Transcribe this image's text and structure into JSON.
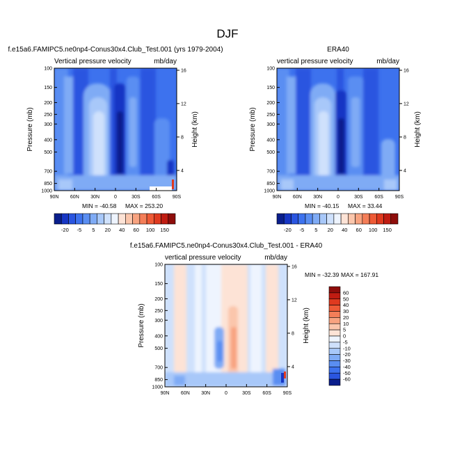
{
  "figure": {
    "title": "DJF"
  },
  "chart_data": [
    {
      "type": "heatmap",
      "title": "f.e15a6.FAMIPC5.ne0np4-Conus30x4.Club_Test.001 (yrs 1979-2004)",
      "subtitle_left": "Vertical pressure velocity",
      "subtitle_right": "mb/day",
      "ylabel": "Pressure (mb)",
      "ylabel_right": "Height (km)",
      "x_ticks": [
        "90N",
        "60N",
        "30N",
        "0",
        "30S",
        "60S",
        "90S"
      ],
      "y_ticks": [
        "100",
        "150",
        "200",
        "250",
        "300",
        "400",
        "500",
        "700",
        "850",
        "1000"
      ],
      "y_ticks_right": [
        "16",
        "12",
        "8",
        "4"
      ],
      "min_label": "MIN = -40.58",
      "max_label": "MAX = 253.20",
      "colorbar_labels": [
        "-20",
        "-5",
        "5",
        "20",
        "40",
        "60",
        "100",
        "150"
      ]
    },
    {
      "type": "heatmap",
      "title": "ERA40",
      "subtitle_left": "vertical pressure velocity",
      "subtitle_right": "mb/day",
      "ylabel": "Pressure (mb)",
      "ylabel_right": "Height (km)",
      "x_ticks": [
        "90N",
        "60N",
        "30N",
        "0",
        "30S",
        "60S",
        "90S"
      ],
      "y_ticks": [
        "100",
        "150",
        "200",
        "250",
        "300",
        "400",
        "500",
        "700",
        "850",
        "1000"
      ],
      "y_ticks_right": [
        "16",
        "12",
        "8",
        "4"
      ],
      "min_label": "MIN = -40.15",
      "max_label": "MAX =  33.44",
      "colorbar_labels": [
        "-20",
        "-5",
        "5",
        "20",
        "40",
        "60",
        "100",
        "150"
      ]
    },
    {
      "type": "heatmap",
      "title": "f.e15a6.FAMIPC5.ne0np4-Conus30x4.Club_Test.001 - ERA40",
      "subtitle_left": "vertical pressure velocity",
      "subtitle_right": "mb/day",
      "ylabel": "Pressure (mb)",
      "ylabel_right": "Height (km)",
      "x_ticks": [
        "90N",
        "60N",
        "30N",
        "0",
        "30S",
        "60S",
        "90S"
      ],
      "y_ticks": [
        "100",
        "150",
        "200",
        "250",
        "300",
        "400",
        "500",
        "700",
        "850",
        "1000"
      ],
      "y_ticks_right": [
        "16",
        "12",
        "8",
        "4"
      ],
      "min_label": "MIN = -32.39",
      "max_label": "MAX = 167.91",
      "colorbar_labels": [
        "60",
        "50",
        "40",
        "30",
        "20",
        "10",
        "5",
        "0",
        "-5",
        "-10",
        "-20",
        "-30",
        "-40",
        "-50",
        "-60"
      ]
    }
  ],
  "colors": {
    "cbar_top": [
      "#0a1e8c",
      "#1736c4",
      "#2a55e0",
      "#3d72ee",
      "#5a8ef2",
      "#7fabf5",
      "#a8c8f9",
      "#cfe1fc",
      "#eef4fe",
      "#fde3d6",
      "#fbc6ac",
      "#f8a380",
      "#f47e58",
      "#ee5a36",
      "#df3a1f",
      "#c01c12",
      "#8e0d0b"
    ],
    "cbar_diff": [
      "#8e0d0b",
      "#c01c12",
      "#df3a1f",
      "#ee5a36",
      "#f47e58",
      "#f8a380",
      "#fbc6ac",
      "#fde3d6",
      "#eef4fe",
      "#cfe1fc",
      "#a8c8f9",
      "#7fabf5",
      "#5a8ef2",
      "#3d72ee",
      "#2a55e0",
      "#0a1e8c"
    ]
  }
}
